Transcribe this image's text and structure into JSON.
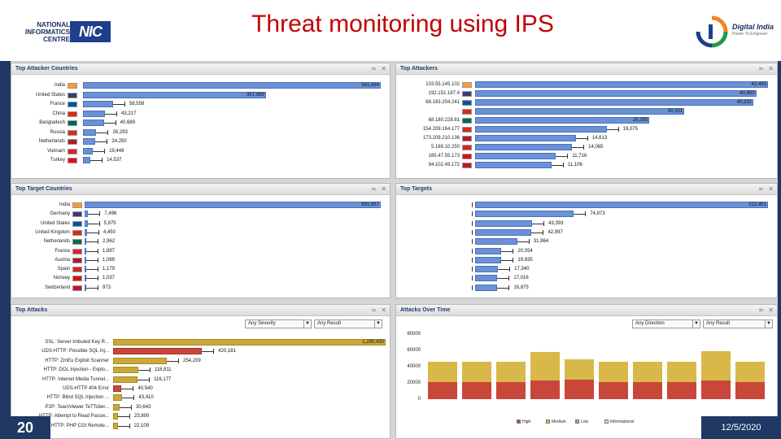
{
  "header": {
    "title": "Threat monitoring using IPS",
    "nic_logo_text": "NATIONAL INFORMATICS CENTRE",
    "nic_logo_mark": "NIC",
    "digital_india_text": "Digital India",
    "digital_india_tagline": "Power To Empower"
  },
  "footer": {
    "slide_number": "20",
    "date": "12/5/2020"
  },
  "panels": {
    "attacker_countries": {
      "title": "Top Attacker Countries",
      "rows": [
        {
          "label": "India",
          "value": "581,564",
          "fraction": 1.0
        },
        {
          "label": "United States",
          "value": "357,089",
          "fraction": 0.614
        },
        {
          "label": "France",
          "value": "58,558",
          "fraction": 0.101
        },
        {
          "label": "China",
          "value": "43,217",
          "fraction": 0.074
        },
        {
          "label": "Bangladesh",
          "value": "40,689",
          "fraction": 0.07
        },
        {
          "label": "Russia",
          "value": "26,293",
          "fraction": 0.045
        },
        {
          "label": "Netherlands",
          "value": "24,250",
          "fraction": 0.042
        },
        {
          "label": "Vietnam",
          "value": "19,448",
          "fraction": 0.033
        },
        {
          "label": "Turkey",
          "value": "14,537",
          "fraction": 0.025
        }
      ]
    },
    "attackers": {
      "title": "Top Attackers",
      "rows": [
        {
          "label": "103.55.145.102",
          "value": "42,493",
          "fraction": 1.0
        },
        {
          "label": "192.151.187.4",
          "value": "40,850",
          "fraction": 0.96
        },
        {
          "label": "68.183.204.241",
          "value": "40,332",
          "fraction": 0.95
        },
        {
          "label": "",
          "value": "30,331",
          "fraction": 0.714
        },
        {
          "label": "68.180.228.81",
          "value": "25,293",
          "fraction": 0.595
        },
        {
          "label": "154.209.164.177",
          "value": "19,075",
          "fraction": 0.449
        },
        {
          "label": "173.209.210.136",
          "value": "14,613",
          "fraction": 0.344
        },
        {
          "label": "5.188.10.250",
          "value": "14,065",
          "fraction": 0.331
        },
        {
          "label": "185.47.55.173",
          "value": "11,716",
          "fraction": 0.276
        },
        {
          "label": "94.102.49.172",
          "value": "11,106",
          "fraction": 0.261
        }
      ]
    },
    "target_countries": {
      "title": "Top Target Countries",
      "rows": [
        {
          "label": "India",
          "value": "891,657",
          "fraction": 1.0
        },
        {
          "label": "Germany",
          "value": "7,496",
          "fraction": 0.012
        },
        {
          "label": "United States",
          "value": "5,975",
          "fraction": 0.01
        },
        {
          "label": "United Kingdom",
          "value": "4,450",
          "fraction": 0.008
        },
        {
          "label": "Netherlands",
          "value": "2,962",
          "fraction": 0.006
        },
        {
          "label": "France",
          "value": "1,897",
          "fraction": 0.004
        },
        {
          "label": "Austria",
          "value": "1,069",
          "fraction": 0.003
        },
        {
          "label": "Spain",
          "value": "1,179",
          "fraction": 0.003
        },
        {
          "label": "Norway",
          "value": "1,037",
          "fraction": 0.003
        },
        {
          "label": "Switzerland",
          "value": "973",
          "fraction": 0.002
        }
      ]
    },
    "targets": {
      "title": "Top Targets",
      "rows": [
        {
          "label": "",
          "value": "222,451",
          "fraction": 1.0
        },
        {
          "label": "",
          "value": "74,873",
          "fraction": 0.337
        },
        {
          "label": "",
          "value": "43,393",
          "fraction": 0.195
        },
        {
          "label": "",
          "value": "42,997",
          "fraction": 0.193
        },
        {
          "label": "",
          "value": "31,964",
          "fraction": 0.144
        },
        {
          "label": "",
          "value": "20,054",
          "fraction": 0.09
        },
        {
          "label": "",
          "value": "19,935",
          "fraction": 0.09
        },
        {
          "label": "",
          "value": "17,340",
          "fraction": 0.078
        },
        {
          "label": "",
          "value": "17,016",
          "fraction": 0.076
        },
        {
          "label": "",
          "value": "16,875",
          "fraction": 0.076
        }
      ]
    },
    "top_attacks": {
      "title": "Top Attacks",
      "filter_severity": "Any Severity",
      "filter_result": "Any Result",
      "rows": [
        {
          "label": "SSL: Server Imbuted Key R...",
          "value": "1,290,430",
          "fraction": 1.0,
          "severity": "medium"
        },
        {
          "label": "UDS-HTTP: Possible SQL Inj...",
          "value": "420,181",
          "fraction": 0.326,
          "severity": "high"
        },
        {
          "label": "HTTP: ZmEu Exploit Scanner",
          "value": "254,209",
          "fraction": 0.197,
          "severity": "medium"
        },
        {
          "label": "HTTP: DOL Injection - Explo...",
          "value": "118,811",
          "fraction": 0.092,
          "severity": "medium"
        },
        {
          "label": "HTTP: Internet Media Tunnel...",
          "value": "116,177",
          "fraction": 0.09,
          "severity": "medium"
        },
        {
          "label": "UDS-HTTP 404 Error",
          "value": "40,540",
          "fraction": 0.031,
          "severity": "high"
        },
        {
          "label": "HTTP: Blind SQL Injection ...",
          "value": "43,410",
          "fraction": 0.034,
          "severity": "medium"
        },
        {
          "label": "P2P: TeamViewer TeTTcber...",
          "value": "30,643",
          "fraction": 0.024,
          "severity": "medium"
        },
        {
          "label": "HTTP: Attempt to Read Passw...",
          "value": "23,800",
          "fraction": 0.018,
          "severity": "medium"
        },
        {
          "label": "HTTP: PHP CGI Remote...",
          "value": "22,109",
          "fraction": 0.017,
          "severity": "medium"
        }
      ]
    },
    "attacks_over_time": {
      "title": "Attacks Over Time",
      "filter_direction": "Any Direction",
      "filter_result": "Any Result",
      "legend": [
        {
          "label": "High",
          "color": "#c8473a"
        },
        {
          "label": "Medium",
          "color": "#d9b84a"
        },
        {
          "label": "Low",
          "color": "#8aa0c8"
        },
        {
          "label": "Informational",
          "color": "#d8d8d8"
        }
      ]
    }
  },
  "chart_data": {
    "type": "bar",
    "stacked": true,
    "title": "Attacks Over Time",
    "yticks": [
      "80000",
      "60000",
      "40000",
      "20000",
      "0"
    ],
    "ylim": [
      0,
      80000
    ],
    "series": [
      {
        "name": "High",
        "values": [
          21000,
          21000,
          21000,
          23000,
          24000,
          21000,
          21000,
          21000,
          23000,
          21000
        ]
      },
      {
        "name": "Medium",
        "values": [
          25000,
          25000,
          25000,
          35000,
          25000,
          25000,
          25000,
          25000,
          36000,
          25000
        ]
      }
    ]
  }
}
